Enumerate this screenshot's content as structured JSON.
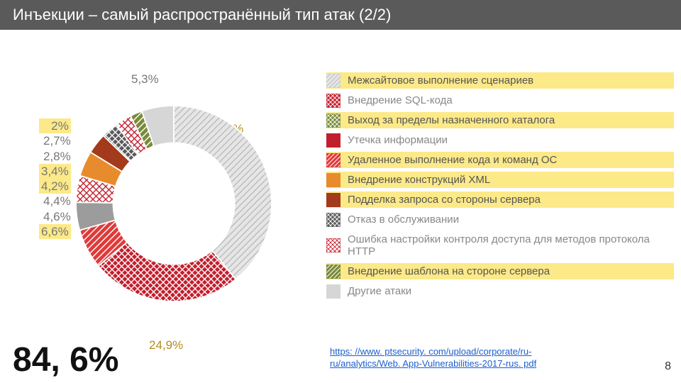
{
  "header": {
    "title": "Инъекции – самый распространённый тип атак (2/2)"
  },
  "big_number": "84, 6%",
  "page_number": "8",
  "source": {
    "line1": "https: //www. ptsecurity. com/upload/corporate/ru-",
    "line2": "ru/analytics/Web. App-Vulnerabilities-2017-rus. pdf"
  },
  "labels": {
    "top1": "5,3%",
    "top2": "39,1%",
    "bottom": "24,9%",
    "left": [
      {
        "text": "2%",
        "hi": true
      },
      {
        "text": "2,7%",
        "hi": false
      },
      {
        "text": "2,8%",
        "hi": false
      },
      {
        "text": " ",
        "hi": false
      },
      {
        "text": "3,4%",
        "hi": true
      },
      {
        "text": "4,2%",
        "hi": true
      },
      {
        "text": "4,4%",
        "hi": false
      },
      {
        "text": "4,6%",
        "hi": false
      },
      {
        "text": "6,6%",
        "hi": true
      }
    ]
  },
  "chart": {
    "type": "donut",
    "inner_ratio": 0.62,
    "background_color": "#ffffff",
    "slices": [
      {
        "value": 39.1,
        "fill": "#e6e6e6",
        "pattern": "diag-lt",
        "stroke": "#cccccc"
      },
      {
        "value": 24.9,
        "fill": "#c21f2e",
        "pattern": "cross-wht",
        "stroke": "#c21f2e"
      },
      {
        "value": 6.6,
        "fill": "#e03a3a",
        "pattern": "diag-wht",
        "stroke": "#e03a3a"
      },
      {
        "value": 4.6,
        "fill": "#9c9c9c",
        "pattern": "solid",
        "stroke": "#9c9c9c"
      },
      {
        "value": 4.4,
        "fill": "#ffffff",
        "pattern": "cross-red",
        "stroke": "#c21f2e"
      },
      {
        "value": 4.2,
        "fill": "#e88b2d",
        "pattern": "solid",
        "stroke": "#e88b2d"
      },
      {
        "value": 3.4,
        "fill": "#a33a1b",
        "pattern": "solid",
        "stroke": "#a33a1b"
      },
      {
        "value": 2.8,
        "fill": "#5a5a5a",
        "pattern": "cross-wht",
        "stroke": "#5a5a5a"
      },
      {
        "value": 2.7,
        "fill": "#ffffff",
        "pattern": "cross-red",
        "stroke": "#c21f2e"
      },
      {
        "value": 2.0,
        "fill": "#7a8a3a",
        "pattern": "diag-wht",
        "stroke": "#7a8a3a"
      },
      {
        "value": 5.3,
        "fill": "#d6d6d6",
        "pattern": "solid",
        "stroke": "#d6d6d6"
      }
    ]
  },
  "legend": [
    {
      "text": "Межсайтовое выполнение сценариев",
      "fill": "#e6e6e6",
      "pattern": "diag-lt",
      "stroke": "#cccccc",
      "hi": true
    },
    {
      "text": "Внедрение SQL-кода",
      "fill": "#c21f2e",
      "pattern": "cross-wht",
      "stroke": "#c21f2e",
      "hi": false
    },
    {
      "text": "Выход за пределы назначенного каталога",
      "fill": "#7a8a3a",
      "pattern": "cross-wht",
      "stroke": "#7a8a3a",
      "hi": true
    },
    {
      "text": "Утечка информации",
      "fill": "#c21f2e",
      "pattern": "solid",
      "stroke": "#c21f2e",
      "hi": false
    },
    {
      "text": "Удаленное выполнение кода и команд ОС",
      "fill": "#e03a3a",
      "pattern": "diag-wht",
      "stroke": "#e03a3a",
      "hi": true
    },
    {
      "text": "Внедрение конструкций XML",
      "fill": "#e88b2d",
      "pattern": "solid",
      "stroke": "#e88b2d",
      "hi": true
    },
    {
      "text": "Подделка запроса со стороны сервера",
      "fill": "#a33a1b",
      "pattern": "solid",
      "stroke": "#a33a1b",
      "hi": true
    },
    {
      "text": "Отказ в обслуживании",
      "fill": "#5a5a5a",
      "pattern": "cross-wht",
      "stroke": "#5a5a5a",
      "hi": false
    },
    {
      "text": "Ошибка настройки контроля доступа для методов протокола HTTP",
      "fill": "#ffffff",
      "pattern": "cross-red",
      "stroke": "#c21f2e",
      "hi": false
    },
    {
      "text": "Внедрение шаблона на стороне сервера",
      "fill": "#7a8a3a",
      "pattern": "diag-wht",
      "stroke": "#7a8a3a",
      "hi": true
    },
    {
      "text": "Другие атаки",
      "fill": "#d6d6d6",
      "pattern": "solid",
      "stroke": "#d6d6d6",
      "hi": false
    }
  ],
  "style": {
    "highlight_bg": "#fce988",
    "text_muted": "#888888",
    "text_gold": "#b58a1f",
    "header_bg": "#5a5a5a",
    "header_fg": "#ffffff",
    "link_color": "#1a5fd0",
    "label_fontsize": 17,
    "legend_fontsize": 15,
    "big_fontsize": 48,
    "title_fontsize": 22
  }
}
